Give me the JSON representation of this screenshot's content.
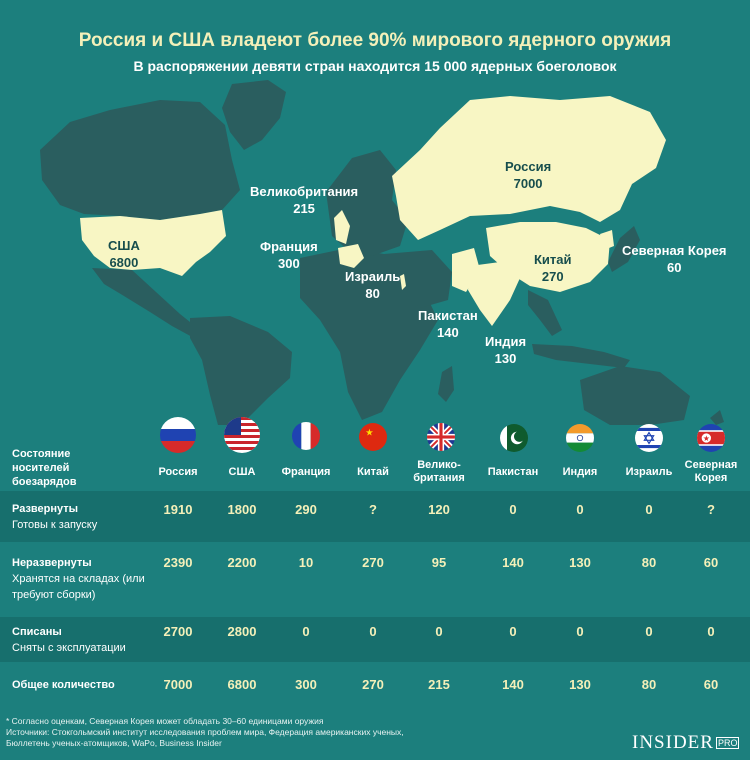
{
  "title": "Россия и США владеют более 90% мирового ядерного оружия",
  "subtitle": "В распоряжении девяти стран находится 15 000 ядерных боеголовок",
  "colors": {
    "background": "#1c7f7d",
    "land": "#2a5e5f",
    "nuclear_land": "#f8f6c4",
    "band": "#176f6d",
    "value": "#f4f0b9"
  },
  "map_labels": [
    {
      "name": "США",
      "value": "6800"
    },
    {
      "name": "Россия",
      "value": "7000"
    },
    {
      "name": "Великобритания",
      "value": "215"
    },
    {
      "name": "Франция",
      "value": "300"
    },
    {
      "name": "Израиль",
      "value": "80"
    },
    {
      "name": "Китай",
      "value": "270"
    },
    {
      "name": "Пакистан",
      "value": "140"
    },
    {
      "name": "Индия",
      "value": "130"
    },
    {
      "name": "Северная Корея",
      "value": "60"
    }
  ],
  "table": {
    "header_label": "Состояние носителей боезарядов",
    "countries": [
      {
        "name": "Россия",
        "flag": "russia-flag"
      },
      {
        "name": "США",
        "flag": "usa-flag"
      },
      {
        "name": "Франция",
        "flag": "france-flag"
      },
      {
        "name": "Китай",
        "flag": "china-flag"
      },
      {
        "name": "Велико-британия",
        "flag": "uk-flag"
      },
      {
        "name": "Пакистан",
        "flag": "pakistan-flag"
      },
      {
        "name": "Индия",
        "flag": "india-flag"
      },
      {
        "name": "Израиль",
        "flag": "israel-flag"
      },
      {
        "name": "Северная Корея",
        "flag": "north-korea-flag"
      }
    ],
    "rows": [
      {
        "title": "Развернуты",
        "desc": "Готовы к запуску",
        "values": [
          "1910",
          "1800",
          "290",
          "?",
          "120",
          "0",
          "0",
          "0",
          "?"
        ]
      },
      {
        "title": "Неразвернуты",
        "desc": "Хранятся на складах (или требуют сборки)",
        "values": [
          "2390",
          "2200",
          "10",
          "270",
          "95",
          "140",
          "130",
          "80",
          "60"
        ]
      },
      {
        "title": "Списаны",
        "desc": "Сняты с эксплуатации",
        "values": [
          "2700",
          "2800",
          "0",
          "0",
          "0",
          "0",
          "0",
          "0",
          "0"
        ]
      },
      {
        "title": "Общее количество",
        "desc": "",
        "values": [
          "7000",
          "6800",
          "300",
          "270",
          "215",
          "140",
          "130",
          "80",
          "60"
        ]
      }
    ]
  },
  "chart_data": {
    "type": "table",
    "title": "Россия и США владеют более 90% мирового ядерного оружия",
    "subtitle": "В распоряжении девяти стран находится 15 000 ядерных боеголовок",
    "categories": [
      "Россия",
      "США",
      "Франция",
      "Китай",
      "Велико-британия",
      "Пакистан",
      "Индия",
      "Израиль",
      "Северная Корея"
    ],
    "series": [
      {
        "name": "Развернуты",
        "values": [
          "1910",
          "1800",
          "290",
          "?",
          "120",
          "0",
          "0",
          "0",
          "?"
        ]
      },
      {
        "name": "Неразвернуты",
        "values": [
          "2390",
          "2200",
          "10",
          "270",
          "95",
          "140",
          "130",
          "80",
          "60"
        ]
      },
      {
        "name": "Списаны",
        "values": [
          "2700",
          "2800",
          "0",
          "0",
          "0",
          "0",
          "0",
          "0",
          "0"
        ]
      },
      {
        "name": "Общее количество",
        "values": [
          "7000",
          "6800",
          "300",
          "270",
          "215",
          "140",
          "130",
          "80",
          "60"
        ]
      }
    ]
  },
  "footnotes": [
    "* Согласно оценкам, Северная Корея может обладать 30–60 единицами оружия",
    "Источники: Стокгольмский институт исследования проблем мира, Федерация американских ученых,",
    "Бюллетень ученых-атомщиков, WaPo, Business Insider"
  ],
  "logo": {
    "text": "INSIDER",
    "badge": "PRO"
  }
}
